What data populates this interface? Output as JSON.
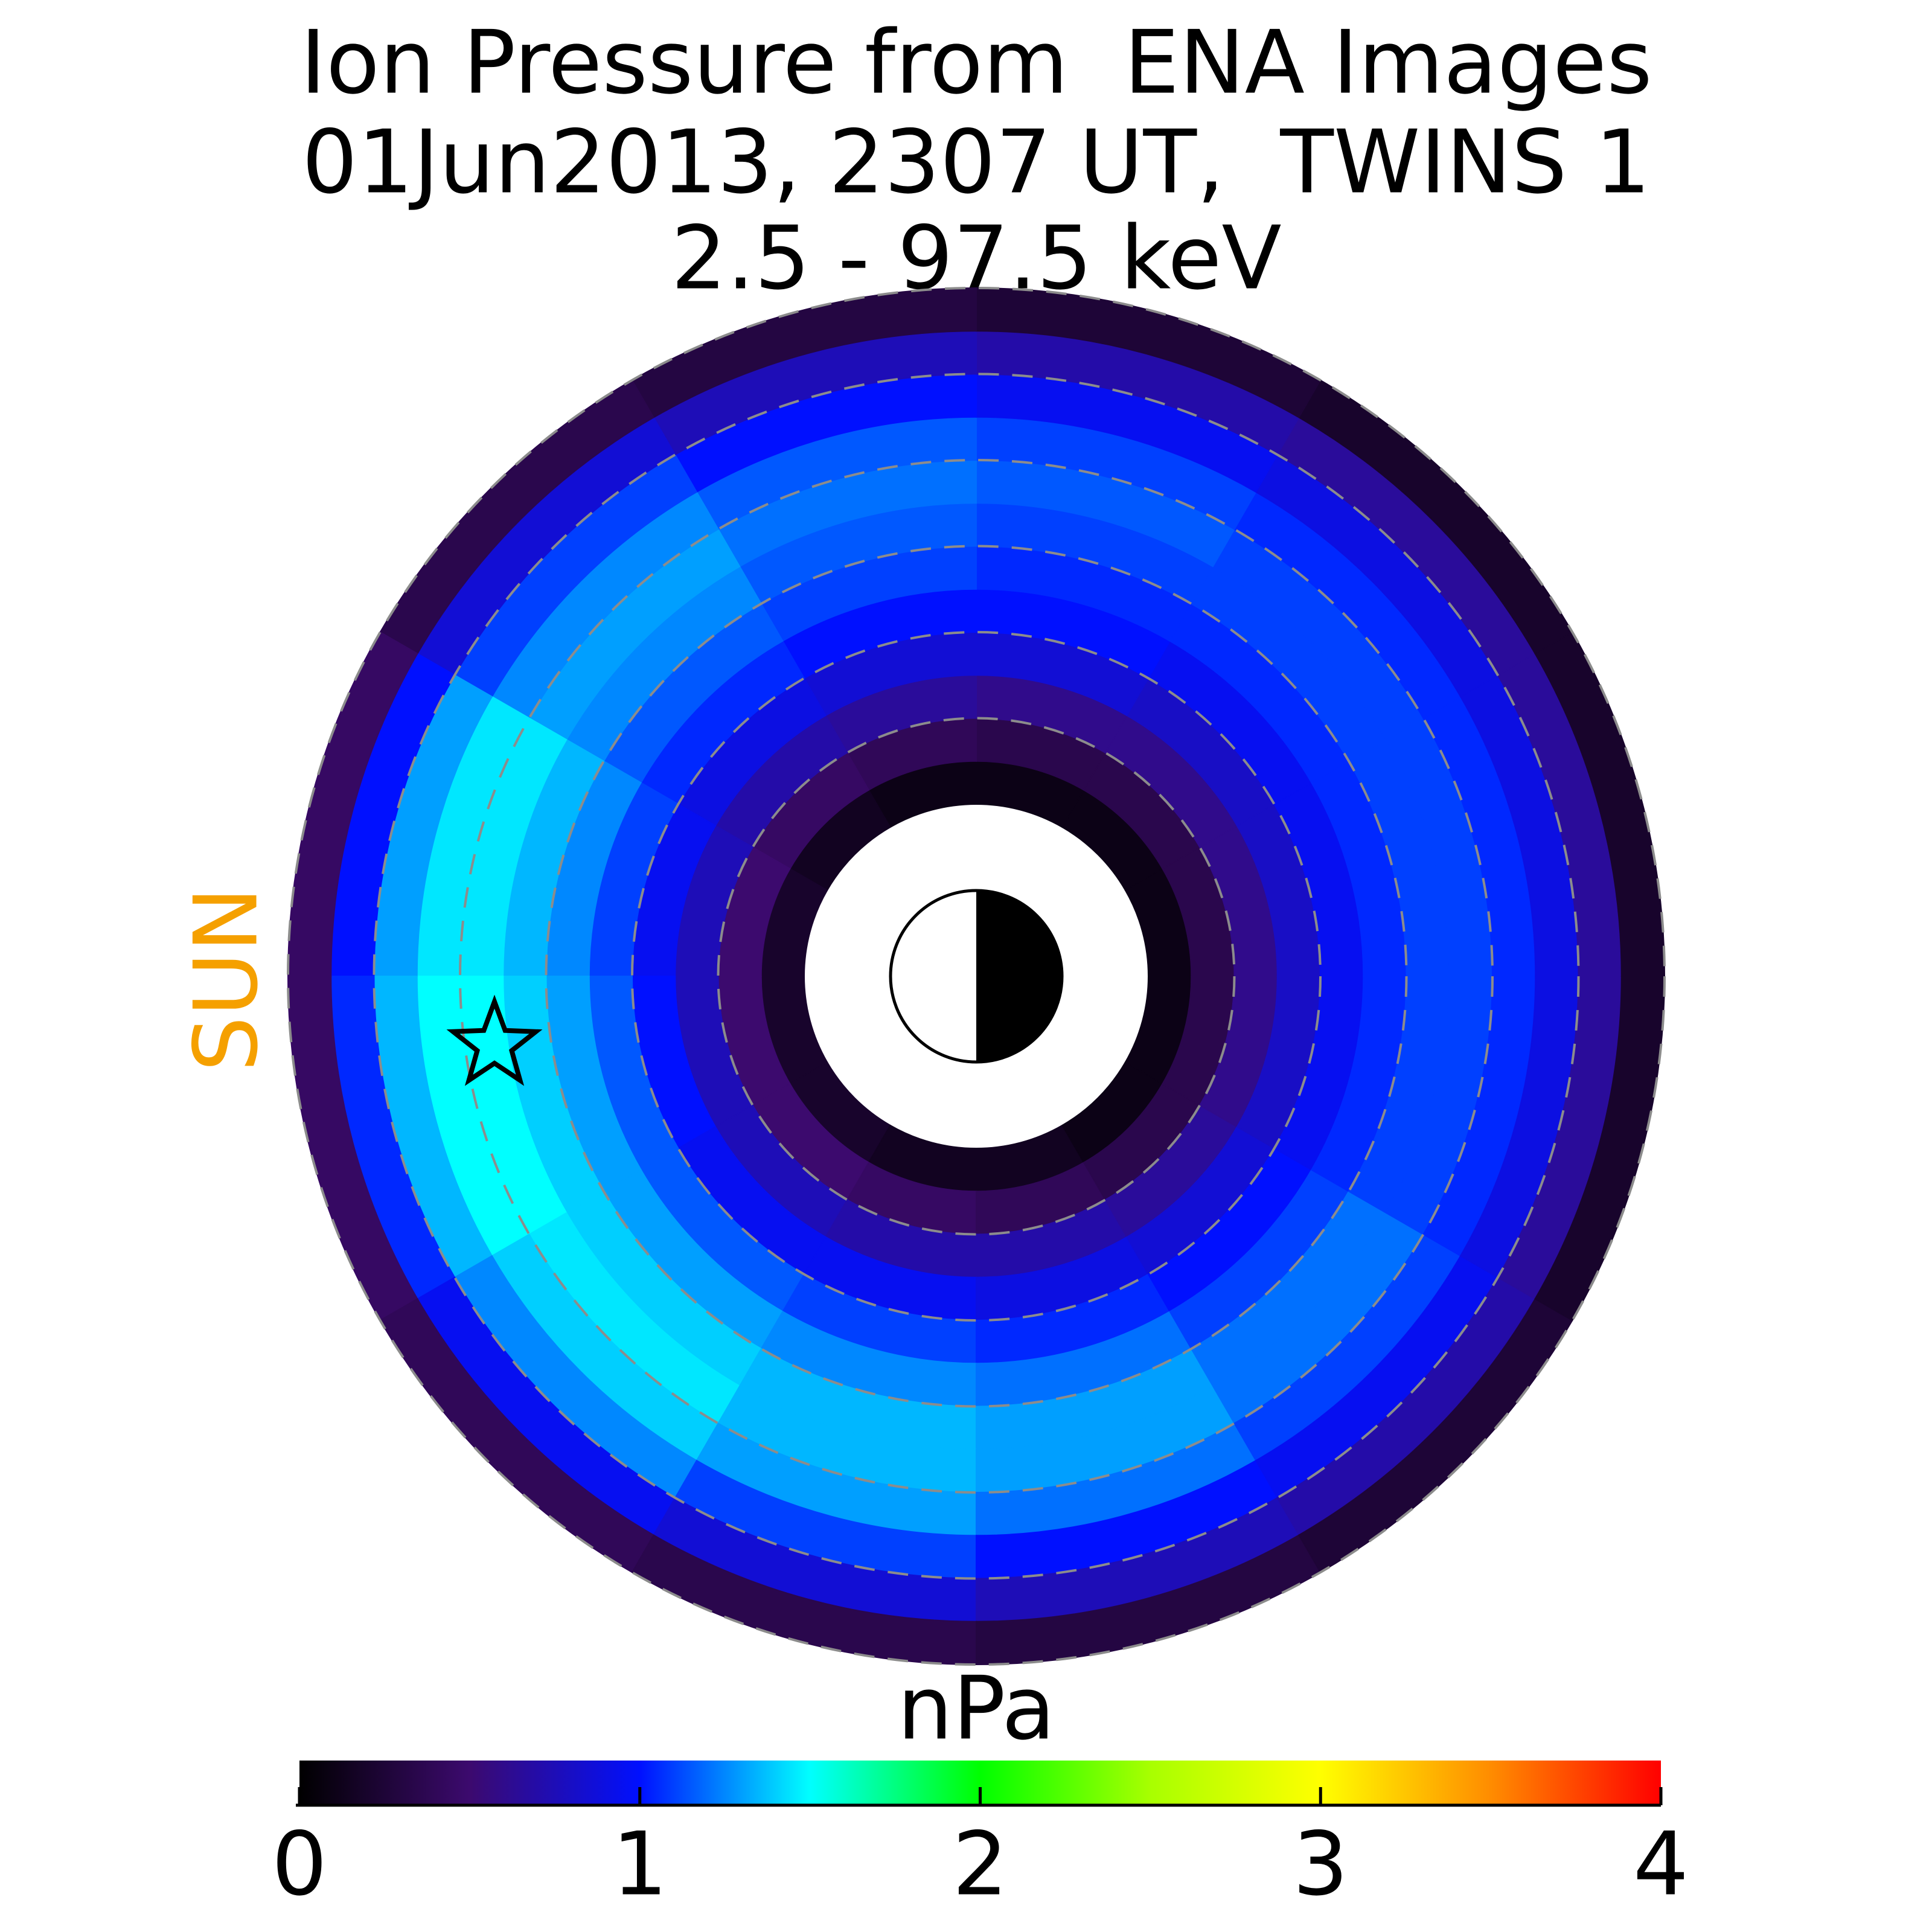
{
  "chart_data": {
    "type": "polar_heatmap",
    "title": [
      "Ion Pressure from  ENA Images",
      "01Jun2013, 2307 UT,  TWINS 1",
      "2.5 - 97.5 keV"
    ],
    "side_label": "SUN",
    "r_edges": [
      2,
      2.5,
      3,
      3.5,
      4,
      4.5,
      5,
      5.5,
      6,
      6.5,
      7,
      7.5,
      8
    ],
    "theta_edges": [
      0,
      30,
      60,
      90,
      120,
      150,
      180,
      210,
      240,
      270,
      300,
      330,
      360
    ],
    "values": [
      [
        0.1,
        0.1,
        0.1,
        0.1,
        0.15,
        0.2,
        0.2,
        0.2,
        0.15,
        0.15,
        0.1,
        0.1
      ],
      [
        0.35,
        0.35,
        0.35,
        0.4,
        0.45,
        0.5,
        0.5,
        0.5,
        0.45,
        0.4,
        0.35,
        0.35
      ],
      [
        0.6,
        0.6,
        0.6,
        0.65,
        0.7,
        0.75,
        0.75,
        0.75,
        0.7,
        0.7,
        0.65,
        0.6
      ],
      [
        0.8,
        0.8,
        0.85,
        0.85,
        0.9,
        0.95,
        1.0,
        0.95,
        0.95,
        0.9,
        0.85,
        0.8
      ],
      [
        0.95,
        0.95,
        1.0,
        1.0,
        1.05,
        1.1,
        1.15,
        1.15,
        1.1,
        1.05,
        1.0,
        0.95
      ],
      [
        1.05,
        1.05,
        1.05,
        1.1,
        1.15,
        1.25,
        1.3,
        1.3,
        1.25,
        1.2,
        1.1,
        1.05
      ],
      [
        1.1,
        1.1,
        1.1,
        1.15,
        1.25,
        1.35,
        1.4,
        1.4,
        1.35,
        1.3,
        1.2,
        1.1
      ],
      [
        1.1,
        1.1,
        1.15,
        1.2,
        1.3,
        1.45,
        1.5,
        1.45,
        1.35,
        1.3,
        1.2,
        1.1
      ],
      [
        1.05,
        1.05,
        1.1,
        1.15,
        1.25,
        1.45,
        1.5,
        1.4,
        1.3,
        1.2,
        1.1,
        1.05
      ],
      [
        0.9,
        0.9,
        0.95,
        1.0,
        1.1,
        1.3,
        1.35,
        1.25,
        1.1,
        1.0,
        0.95,
        0.9
      ],
      [
        0.65,
        0.65,
        0.7,
        0.75,
        0.85,
        1.0,
        1.05,
        0.95,
        0.85,
        0.75,
        0.7,
        0.65
      ],
      [
        0.2,
        0.2,
        0.25,
        0.3,
        0.35,
        0.45,
        0.45,
        0.4,
        0.35,
        0.3,
        0.25,
        0.2
      ]
    ],
    "rlim": [
      0,
      8
    ],
    "rticks": [
      3,
      4,
      5,
      6,
      7,
      8
    ],
    "star": {
      "x": -5.6,
      "y": -0.8
    },
    "colorbar": {
      "label": "nPa",
      "clim": [
        0,
        4
      ],
      "ticks": [
        0,
        1,
        2,
        3,
        4
      ],
      "colors": [
        "#000000",
        "#3c0a6e",
        "#0010ff",
        "#00ffff",
        "#00ff00",
        "#a8ff00",
        "#ffff00",
        "#ff8c00",
        "#ff0000"
      ]
    }
  }
}
